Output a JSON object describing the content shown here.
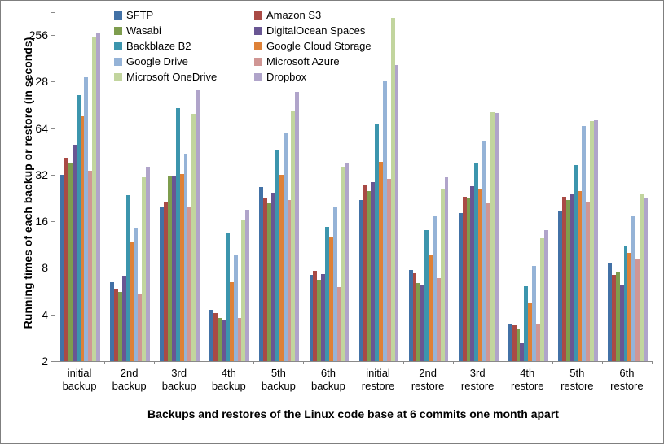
{
  "chart_data": {
    "type": "bar",
    "title": "",
    "xlabel": "Backups and restores of the Linux code base at 6 commits one month apart",
    "ylabel": "Running times of each backup or restore (in seconds)",
    "y_scale": "log2",
    "yticks": [
      2,
      4,
      8,
      16,
      32,
      64,
      128,
      256
    ],
    "ylim": [
      2,
      350
    ],
    "grid": false,
    "legend_position": "top-left-two-columns",
    "categories": [
      "initial backup",
      "2nd backup",
      "3rd backup",
      "4th backup",
      "5th backup",
      "6th backup",
      "initial restore",
      "2nd restore",
      "3rd restore",
      "4th restore",
      "5th restore",
      "6th restore"
    ],
    "series": [
      {
        "name": "SFTP",
        "color": "#4271A6",
        "values": [
          32,
          6.5,
          20,
          4.3,
          26.5,
          7.2,
          22,
          7.8,
          18,
          3.5,
          18.5,
          8.5
        ]
      },
      {
        "name": "Amazon S3",
        "color": "#A94A45",
        "values": [
          41,
          5.9,
          21.5,
          4.1,
          22.5,
          7.7,
          27.5,
          7.4,
          23,
          3.4,
          23,
          7.2
        ]
      },
      {
        "name": "Wasabi",
        "color": "#7E9D4E",
        "values": [
          38,
          5.6,
          31.5,
          3.8,
          21,
          6.7,
          25,
          6.4,
          22.5,
          3.2,
          22,
          7.5
        ]
      },
      {
        "name": "DigitalOcean Spaces",
        "color": "#695693",
        "values": [
          50,
          7,
          31.5,
          3.7,
          24.5,
          7.3,
          28.5,
          6.2,
          27,
          2.6,
          24,
          6.2
        ]
      },
      {
        "name": "Backblaze B2",
        "color": "#3C95AD",
        "values": [
          105,
          23.5,
          86,
          13.4,
          46,
          14.7,
          68,
          14.1,
          38,
          6.1,
          37,
          11
        ]
      },
      {
        "name": "Google Cloud Storage",
        "color": "#DE8137",
        "values": [
          76,
          11.7,
          32.5,
          6.5,
          32,
          12.6,
          39,
          9.6,
          26,
          4.7,
          25,
          10
        ]
      },
      {
        "name": "Google Drive",
        "color": "#95B3D7",
        "values": [
          137,
          14.5,
          44,
          9.7,
          60,
          19.8,
          128,
          17.3,
          53,
          8.2,
          66,
          17.2
        ]
      },
      {
        "name": "Microsoft Azure",
        "color": "#D09694",
        "values": [
          34,
          5.4,
          20,
          3.8,
          22,
          6.0,
          30,
          6.9,
          21,
          3.5,
          21.5,
          9.2
        ]
      },
      {
        "name": "Microsoft OneDrive",
        "color": "#C2D59E",
        "values": [
          250,
          31,
          79,
          16.5,
          83,
          36,
          330,
          26,
          81,
          12.5,
          71,
          24
        ]
      },
      {
        "name": "Dropbox",
        "color": "#B0A4CA",
        "values": [
          265,
          36,
          112,
          19,
          110,
          38.5,
          164,
          31,
          80,
          14,
          72.5,
          22.5
        ]
      }
    ]
  }
}
